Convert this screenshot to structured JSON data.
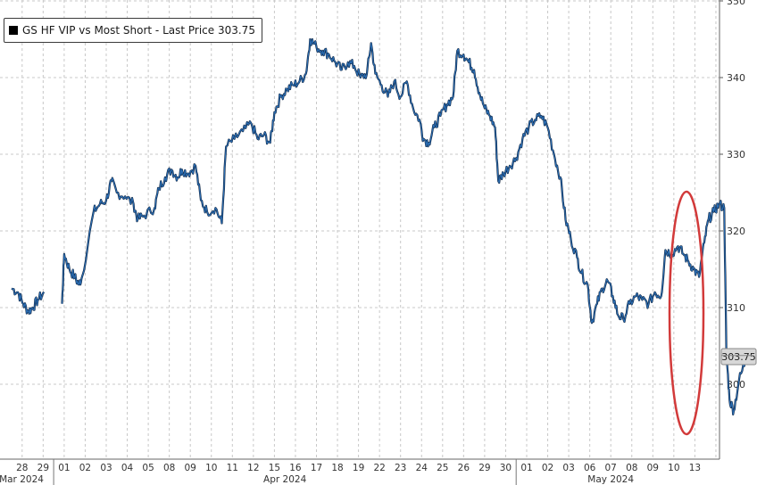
{
  "chart_data": {
    "type": "line",
    "legend": {
      "series_name": "GS HF VIP vs Most Short",
      "full_label": "GS HF VIP vs Most Short - Last Price 303.75",
      "placement": "top-left"
    },
    "last_price_label": "303.75",
    "y_axis": {
      "side": "right",
      "ylim": [
        293,
        350
      ],
      "ticks": [
        300,
        310,
        320,
        330,
        340,
        350
      ]
    },
    "x_axis": {
      "day_labels": [
        "28",
        "29",
        "01",
        "02",
        "03",
        "04",
        "05",
        "08",
        "09",
        "10",
        "11",
        "12",
        "15",
        "16",
        "17",
        "18",
        "19",
        "22",
        "23",
        "24",
        "25",
        "26",
        "29",
        "30",
        "01",
        "02",
        "03",
        "06",
        "07",
        "08",
        "09",
        "10",
        "13"
      ],
      "month_labels": [
        {
          "label": "Mar 2024",
          "day_range": [
            0,
            1
          ]
        },
        {
          "label": "Apr 2024",
          "day_range": [
            2,
            23
          ]
        },
        {
          "label": "May 2024",
          "day_range": [
            24,
            32
          ]
        }
      ]
    },
    "grid": true,
    "colors": {
      "line": "#2a6db3",
      "line_dark": "#10243f",
      "last_price_box": "#d7d7d7",
      "highlight_ellipse": "#d23a3a",
      "grid": "#c8c8c8"
    },
    "series": [
      {
        "name": "GS HF VIP vs Most Short",
        "points": [
          [
            0.0,
            312.5
          ],
          [
            0.3,
            312.0
          ],
          [
            0.55,
            310.5
          ],
          [
            0.8,
            309.5
          ],
          [
            1.0,
            310.0
          ],
          [
            1.25,
            311.0
          ],
          [
            1.55,
            312.0
          ],
          [
            2.4,
            310.5
          ],
          [
            2.5,
            317.0
          ],
          [
            2.75,
            315.0
          ],
          [
            3.0,
            314.0
          ],
          [
            3.2,
            313.0
          ],
          [
            3.35,
            314.0
          ],
          [
            3.9,
            322.5
          ],
          [
            4.2,
            323.5
          ],
          [
            4.5,
            324.0
          ],
          [
            4.75,
            326.5
          ],
          [
            5.0,
            325.0
          ],
          [
            5.4,
            324.5
          ],
          [
            5.8,
            323.5
          ],
          [
            6.0,
            321.5
          ],
          [
            6.3,
            322.0
          ],
          [
            6.8,
            323.0
          ],
          [
            7.0,
            325.5
          ],
          [
            7.3,
            327.0
          ],
          [
            7.6,
            328.0
          ],
          [
            7.9,
            327.0
          ],
          [
            8.1,
            328.0
          ],
          [
            8.4,
            327.5
          ],
          [
            8.75,
            328.5
          ],
          [
            9.0,
            324.0
          ],
          [
            9.3,
            322.5
          ],
          [
            9.7,
            323.0
          ],
          [
            10.0,
            321.0
          ],
          [
            10.2,
            331.0
          ],
          [
            10.6,
            332.0
          ],
          [
            11.0,
            333.0
          ],
          [
            11.4,
            334.0
          ],
          [
            11.7,
            332.0
          ],
          [
            12.0,
            332.5
          ],
          [
            12.3,
            331.5
          ],
          [
            12.5,
            335.5
          ],
          [
            12.8,
            337.5
          ],
          [
            13.1,
            338.5
          ],
          [
            13.4,
            339.0
          ],
          [
            13.7,
            339.5
          ],
          [
            14.0,
            340.5
          ],
          [
            14.2,
            345.0
          ],
          [
            14.5,
            344.0
          ],
          [
            14.8,
            343.5
          ],
          [
            15.1,
            343.0
          ],
          [
            15.4,
            342.0
          ],
          [
            15.7,
            341.0
          ],
          [
            16.0,
            342.0
          ],
          [
            16.3,
            341.5
          ],
          [
            16.6,
            340.0
          ],
          [
            16.9,
            340.5
          ],
          [
            17.1,
            344.5
          ],
          [
            17.3,
            340.5
          ],
          [
            17.6,
            339.0
          ],
          [
            17.9,
            337.5
          ],
          [
            18.2,
            339.5
          ],
          [
            18.5,
            337.5
          ],
          [
            18.8,
            339.5
          ],
          [
            19.1,
            336.0
          ],
          [
            19.4,
            334.5
          ],
          [
            19.6,
            332.0
          ],
          [
            19.85,
            331.5
          ],
          [
            20.1,
            333.5
          ],
          [
            20.4,
            335.0
          ],
          [
            20.7,
            336.5
          ],
          [
            21.0,
            337.5
          ],
          [
            21.2,
            343.5
          ],
          [
            21.5,
            343.0
          ],
          [
            21.75,
            342.0
          ],
          [
            22.0,
            341.0
          ],
          [
            22.25,
            338.0
          ],
          [
            22.5,
            336.0
          ],
          [
            22.75,
            335.0
          ],
          [
            23.0,
            333.5
          ],
          [
            23.15,
            326.5
          ],
          [
            23.4,
            327.5
          ],
          [
            23.7,
            328.5
          ],
          [
            24.0,
            329.5
          ],
          [
            24.3,
            332.0
          ],
          [
            24.6,
            333.5
          ],
          [
            24.9,
            334.5
          ],
          [
            25.2,
            335.0
          ],
          [
            25.5,
            333.5
          ],
          [
            25.8,
            330.0
          ],
          [
            26.1,
            327.0
          ],
          [
            26.35,
            321.5
          ],
          [
            26.6,
            319.0
          ],
          [
            26.9,
            316.5
          ],
          [
            27.1,
            314.5
          ],
          [
            27.4,
            313.0
          ],
          [
            27.6,
            308.0
          ],
          [
            27.85,
            310.5
          ],
          [
            28.1,
            312.5
          ],
          [
            28.35,
            313.5
          ],
          [
            28.6,
            311.5
          ],
          [
            28.85,
            309.0
          ],
          [
            29.1,
            308.5
          ],
          [
            29.4,
            310.5
          ],
          [
            29.7,
            311.5
          ],
          [
            30.0,
            311.0
          ],
          [
            30.3,
            310.5
          ],
          [
            30.6,
            312.0
          ],
          [
            30.9,
            311.5
          ],
          [
            31.1,
            317.5
          ],
          [
            31.4,
            317.0
          ],
          [
            31.7,
            318.0
          ],
          [
            31.95,
            317.0
          ],
          [
            32.2,
            316.0
          ],
          [
            32.45,
            315.0
          ],
          [
            32.7,
            314.0
          ],
          [
            32.95,
            318.5
          ],
          [
            33.15,
            321.5
          ],
          [
            33.4,
            322.5
          ],
          [
            33.65,
            323.5
          ],
          [
            33.9,
            323.0
          ],
          [
            34.0,
            304.0
          ],
          [
            34.15,
            298.0
          ],
          [
            34.35,
            296.5
          ],
          [
            34.6,
            300.5
          ],
          [
            34.9,
            303.0
          ],
          [
            35.1,
            304.5
          ],
          [
            35.3,
            303.75
          ]
        ]
      }
    ]
  }
}
